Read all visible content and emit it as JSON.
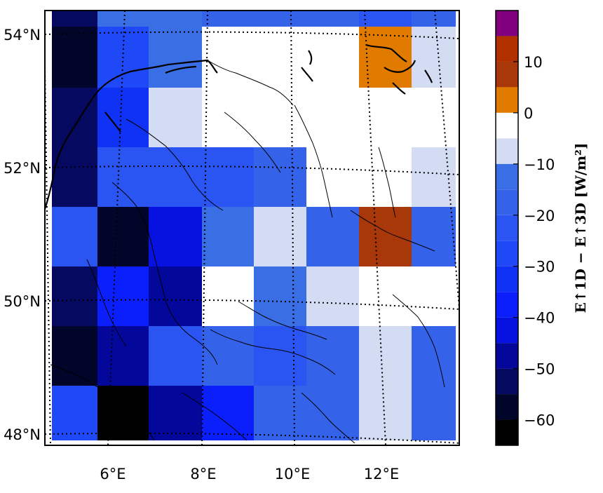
{
  "map": {
    "lat_labels": [
      "54°N",
      "52°N",
      "50°N",
      "48°N"
    ],
    "lon_labels": [
      "6°E",
      "8°E",
      "10°E",
      "12°E"
    ],
    "colorbar": {
      "title": "E↑1D − E↑3D [W/m²]",
      "tick_labels": [
        "10",
        "0",
        "−10",
        "−20",
        "−30",
        "−40",
        "−50",
        "−60"
      ],
      "tick_values": [
        10,
        0,
        -10,
        -20,
        -30,
        -40,
        -50,
        -60
      ],
      "range": [
        -65,
        20
      ],
      "levels": [
        {
          "from": 15,
          "to": 20,
          "color": "#800080"
        },
        {
          "from": 10,
          "to": 15,
          "color": "#b03000"
        },
        {
          "from": 5,
          "to": 10,
          "color": "#a8370a"
        },
        {
          "from": 0,
          "to": 5,
          "color": "#e07b00"
        },
        {
          "from": -5,
          "to": 0,
          "color": "#ffffff"
        },
        {
          "from": -10,
          "to": -5,
          "color": "#d4dcf3"
        },
        {
          "from": -15,
          "to": -10,
          "color": "#3a6ee4"
        },
        {
          "from": -20,
          "to": -15,
          "color": "#3463ea"
        },
        {
          "from": -25,
          "to": -20,
          "color": "#2a55f2"
        },
        {
          "from": -30,
          "to": -25,
          "color": "#1f48f6"
        },
        {
          "from": -35,
          "to": -30,
          "color": "#1032f5"
        },
        {
          "from": -40,
          "to": -35,
          "color": "#0a1ffb"
        },
        {
          "from": -45,
          "to": -40,
          "color": "#0712e0"
        },
        {
          "from": -50,
          "to": -45,
          "color": "#03089b"
        },
        {
          "from": -55,
          "to": -50,
          "color": "#050a60"
        },
        {
          "from": -60,
          "to": -55,
          "color": "#02052a"
        },
        {
          "from": -65,
          "to": -60,
          "color": "#000000"
        }
      ]
    },
    "grid_rows": [
      [
        "#050a60",
        "#3a6ee4",
        "#3a6ee4",
        "#3463ea",
        "#3463ea",
        "#3463ea",
        "#2a55f2",
        "#3463ea"
      ],
      [
        "#02052a",
        "#1f48f6",
        "#3a6ee4",
        "#ffffff",
        "#ffffff",
        "#ffffff",
        "#e07b00",
        "#d4dcf3"
      ],
      [
        "#050a60",
        "#1032f5",
        "#d4dcf3",
        "#ffffff",
        "#ffffff",
        "#ffffff",
        "#ffffff",
        "#ffffff"
      ],
      [
        "#050a60",
        "#2a55f2",
        "#2a55f2",
        "#2a55f2",
        "#3463ea",
        "#ffffff",
        "#ffffff",
        "#d4dcf3"
      ],
      [
        "#2a55f2",
        "#02052a",
        "#0712e0",
        "#3a6ee4",
        "#d4dcf3",
        "#3463ea",
        "#a8370a",
        "#3463ea"
      ],
      [
        "#050a60",
        "#0a1ffb",
        "#03089b",
        "#ffffff",
        "#3a6ee4",
        "#d4dcf3",
        "#ffffff",
        "#ffffff"
      ],
      [
        "#02052a",
        "#03089b",
        "#2a55f2",
        "#3463ea",
        "#2a55f2",
        "#3463ea",
        "#d4dcf3",
        "#3463ea"
      ],
      [
        "#1f48f6",
        "#000000",
        "#03089b",
        "#0a1ffb",
        "#3463ea",
        "#3463ea",
        "#d4dcf3",
        "#3463ea"
      ]
    ]
  }
}
